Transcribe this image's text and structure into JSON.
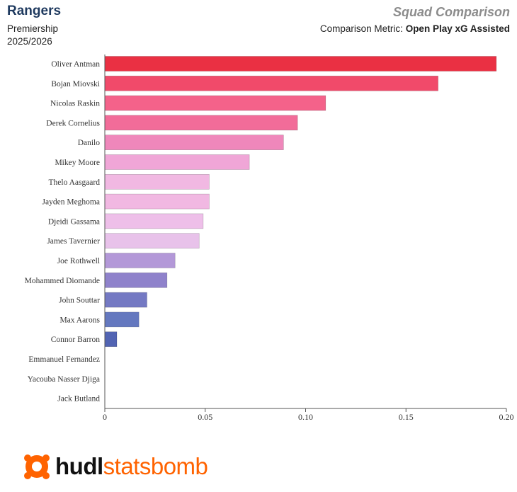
{
  "header": {
    "team": "Rangers",
    "competition": "Premiership",
    "season": "2025/2026",
    "report_title": "Squad Comparison",
    "metric_label": "Comparison Metric:",
    "metric_value": "Open Play xG Assisted"
  },
  "logo": {
    "icon": "statsbomb-logo-icon",
    "hudl": "hudl",
    "statsbomb": "statsbomb"
  },
  "chart_data": {
    "type": "bar",
    "orientation": "horizontal",
    "categories": [
      "Oliver Antman",
      "Bojan Miovski",
      "Nicolas Raskin",
      "Derek Cornelius",
      "Danilo",
      "Mikey Moore",
      "Thelo Aasgaard",
      "Jayden Meghoma",
      "Djeidi Gassama",
      "James Tavernier",
      "Joe Rothwell",
      "Mohammed Diomande",
      "John Souttar",
      "Max Aarons",
      "Connor Barron",
      "Emmanuel Fernandez",
      "Yacouba Nasser Djiga",
      "Jack Butland"
    ],
    "values": [
      0.195,
      0.166,
      0.11,
      0.096,
      0.089,
      0.072,
      0.052,
      0.052,
      0.049,
      0.047,
      0.035,
      0.031,
      0.021,
      0.017,
      0.006,
      0,
      0,
      0
    ],
    "colors": [
      "#ea3043",
      "#f14a6a",
      "#f4628a",
      "#f26c99",
      "#ef87bb",
      "#f0a6d7",
      "#f1b8e2",
      "#f1b8e2",
      "#eebfe9",
      "#e8c2ea",
      "#b398d8",
      "#8f82cb",
      "#7479c3",
      "#6478bf",
      "#5264b3",
      "#5264b3",
      "#5264b3",
      "#5264b3"
    ],
    "xlim": [
      0,
      0.2
    ],
    "xticks": [
      "0",
      "0.05",
      "0.10",
      "0.15",
      "0.20"
    ],
    "xtick_values": [
      0,
      0.05,
      0.1,
      0.15,
      0.2
    ],
    "xlabel": "",
    "ylabel": "",
    "grid": false,
    "legend": "none"
  }
}
